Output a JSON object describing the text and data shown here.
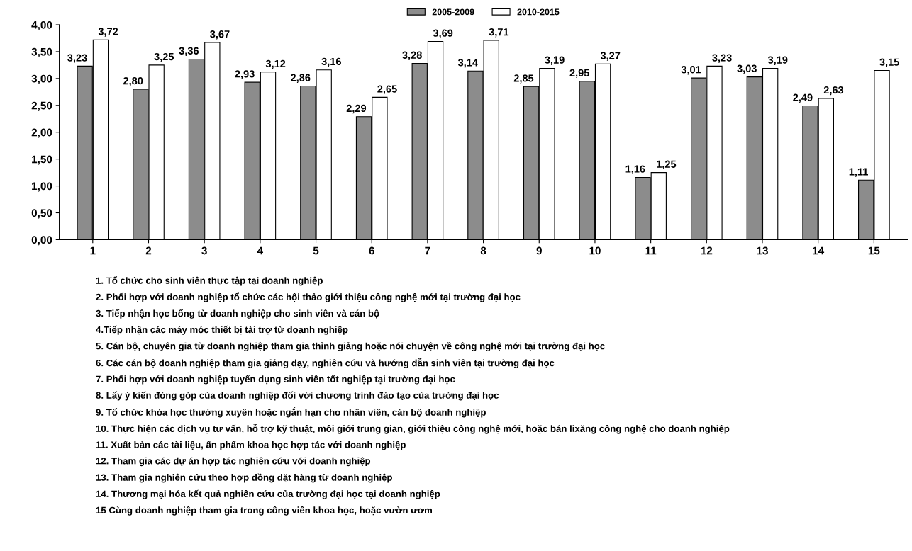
{
  "chart_data": {
    "type": "bar",
    "categories": [
      "1",
      "2",
      "3",
      "4",
      "5",
      "6",
      "7",
      "8",
      "9",
      "10",
      "11",
      "12",
      "13",
      "14",
      "15"
    ],
    "series": [
      {
        "name": "2005-2009",
        "color": "#8c8c8c",
        "values": [
          3.23,
          2.8,
          3.36,
          2.93,
          2.86,
          2.29,
          3.28,
          3.14,
          2.85,
          2.95,
          1.16,
          3.01,
          3.03,
          2.49,
          1.11
        ],
        "value_labels": [
          "3,23",
          "2,80",
          "3,36",
          "2,93",
          "2,86",
          "2,29",
          "3,28",
          "3,14",
          "2,85",
          "2,95",
          "1,16",
          "3,01",
          "3,03",
          "2,49",
          "1,11"
        ]
      },
      {
        "name": "2010-2015",
        "color": "#ffffff",
        "values": [
          3.72,
          3.25,
          3.67,
          3.12,
          3.16,
          2.65,
          3.69,
          3.71,
          3.19,
          3.27,
          1.25,
          3.23,
          3.19,
          2.63,
          3.15
        ],
        "value_labels": [
          "3,72",
          "3,25",
          "3,67",
          "3,12",
          "3,16",
          "2,65",
          "3,69",
          "3,71",
          "3,19",
          "3,27",
          "1,25",
          "3,23",
          "3,19",
          "2,63",
          "3,15"
        ]
      }
    ],
    "ylim": [
      0,
      4
    ],
    "yticks": [
      {
        "value": 0,
        "label": "0,00"
      },
      {
        "value": 0.5,
        "label": "0,50"
      },
      {
        "value": 1,
        "label": "1,00"
      },
      {
        "value": 1.5,
        "label": "1,50"
      },
      {
        "value": 2,
        "label": "2,00"
      },
      {
        "value": 2.5,
        "label": "2,50"
      },
      {
        "value": 3,
        "label": "3,00"
      },
      {
        "value": 3.5,
        "label": "3,50"
      },
      {
        "value": 4,
        "label": "4,00"
      }
    ],
    "grid": false,
    "legend": "top",
    "annotations": [
      "1. Tổ chức cho sinh viên thực tập tại doanh nghiệp",
      "2. Phối hợp với doanh nghiệp tổ chức các hội thảo giới thiệu công nghệ mới tại trường đại học",
      "3. Tiếp nhận học bổng từ doanh nghiệp cho sinh viên và cán bộ",
      "4.Tiếp nhận các máy móc thiết bị tài trợ từ doanh nghiệp",
      "5. Cán bộ, chuyên gia từ doanh nghiệp tham gia thỉnh giảng hoặc nói chuyện về công nghệ mới tại trường đại học",
      "6. Các cán bộ doanh nghiệp tham gia giảng dạy, nghiên cứu và hướng dẫn sinh viên tại trường đại học",
      "7. Phối hợp với doanh nghiệp tuyển dụng sinh viên tốt nghiệp tại trường đại học",
      "8. Lấy ý kiến đóng góp của doanh nghiệp đối với chương trình đào tạo của trường đại học",
      "9. Tổ chức khóa học thường xuyên hoặc ngắn hạn cho nhân viên, cán bộ doanh nghiệp",
      "10. Thực hiện các dịch vụ tư vấn, hỗ trợ kỹ thuật, môi giới trung gian, giới thiệu công nghệ mới, hoặc bán lixăng công nghệ cho doanh nghiệp",
      "11. Xuất bản các tài liệu, ấn phẩm khoa học hợp tác với doanh nghiệp",
      "12. Tham gia các dự án hợp tác nghiên cứu với doanh nghiệp",
      "13. Tham gia nghiên cứu theo hợp đồng đặt hàng từ doanh nghiệp",
      "14. Thương mại hóa kết quả nghiên cứu của trường đại học tại doanh nghiệp",
      "15 Cùng doanh nghiệp tham gia trong công viên khoa học, hoặc vườn ươm"
    ]
  }
}
